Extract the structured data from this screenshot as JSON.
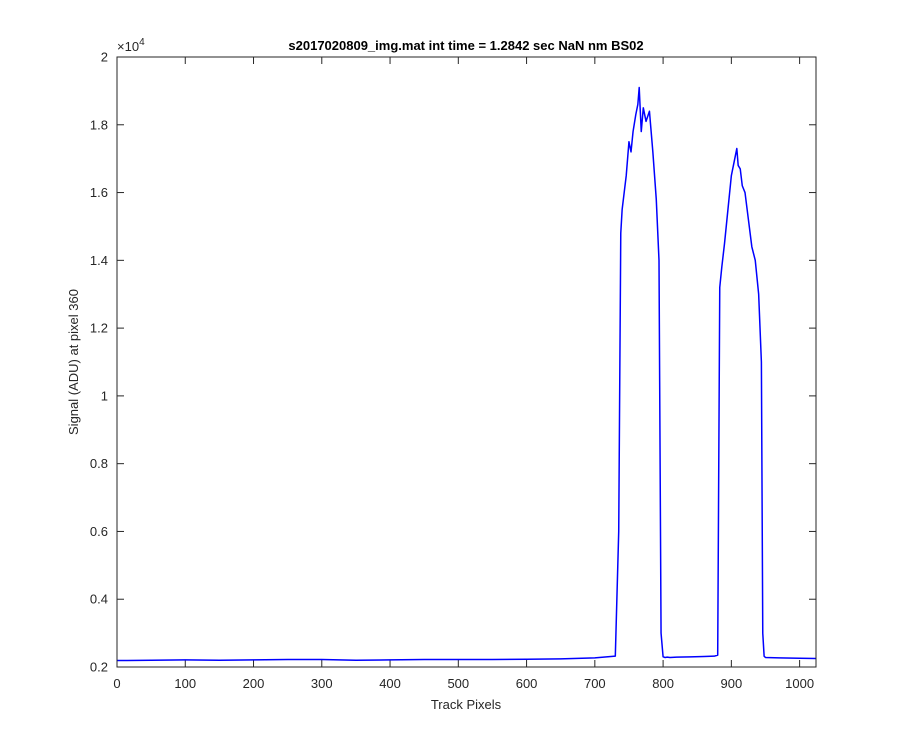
{
  "chart_data": {
    "type": "line",
    "title": "s2017020809_img.mat int time = 1.2842 sec  NaN nm BS02",
    "xlabel": "Track Pixels",
    "ylabel": "Signal (ADU) at pixel 360",
    "y_exponent_label": "×10",
    "y_exponent_power": "4",
    "xlim": [
      0,
      1024
    ],
    "ylim": [
      0.2,
      2.0
    ],
    "x_ticks": [
      0,
      100,
      200,
      300,
      400,
      500,
      600,
      700,
      800,
      900,
      1000
    ],
    "x_tick_labels": [
      "0",
      "100",
      "200",
      "300",
      "400",
      "500",
      "600",
      "700",
      "800",
      "900",
      "1000"
    ],
    "y_ticks": [
      0.2,
      0.4,
      0.6,
      0.8,
      1.0,
      1.2,
      1.4,
      1.6,
      1.8,
      2.0
    ],
    "y_tick_labels": [
      "0.2",
      "0.4",
      "0.6",
      "0.8",
      "1",
      "1.2",
      "1.4",
      "1.6",
      "1.8",
      "2"
    ],
    "grid": false,
    "line_color": "#0000ff",
    "series": [
      {
        "x": [
          0,
          50,
          100,
          150,
          200,
          250,
          300,
          350,
          400,
          450,
          500,
          550,
          600,
          650,
          700,
          730,
          735,
          738,
          740,
          743,
          746,
          750,
          753,
          756,
          760,
          763,
          765,
          768,
          771,
          775,
          780,
          785,
          790,
          794,
          797,
          800,
          803,
          806,
          810,
          820,
          840,
          860,
          875,
          880,
          883,
          886,
          890,
          895,
          900,
          905,
          908,
          910,
          913,
          916,
          920,
          925,
          930,
          935,
          940,
          944,
          946,
          948,
          950,
          970,
          1000,
          1024
        ],
        "y": [
          0.219,
          0.22,
          0.221,
          0.22,
          0.221,
          0.222,
          0.222,
          0.22,
          0.221,
          0.222,
          0.222,
          0.222,
          0.223,
          0.224,
          0.227,
          0.232,
          0.6,
          1.48,
          1.55,
          1.6,
          1.65,
          1.75,
          1.72,
          1.78,
          1.83,
          1.86,
          1.91,
          1.78,
          1.85,
          1.81,
          1.84,
          1.72,
          1.58,
          1.4,
          0.3,
          0.23,
          0.228,
          0.229,
          0.228,
          0.229,
          0.23,
          0.231,
          0.232,
          0.235,
          1.32,
          1.38,
          1.45,
          1.55,
          1.65,
          1.7,
          1.73,
          1.68,
          1.67,
          1.62,
          1.6,
          1.52,
          1.44,
          1.4,
          1.3,
          1.1,
          0.3,
          0.232,
          0.228,
          0.227,
          0.226,
          0.225
        ]
      }
    ]
  }
}
